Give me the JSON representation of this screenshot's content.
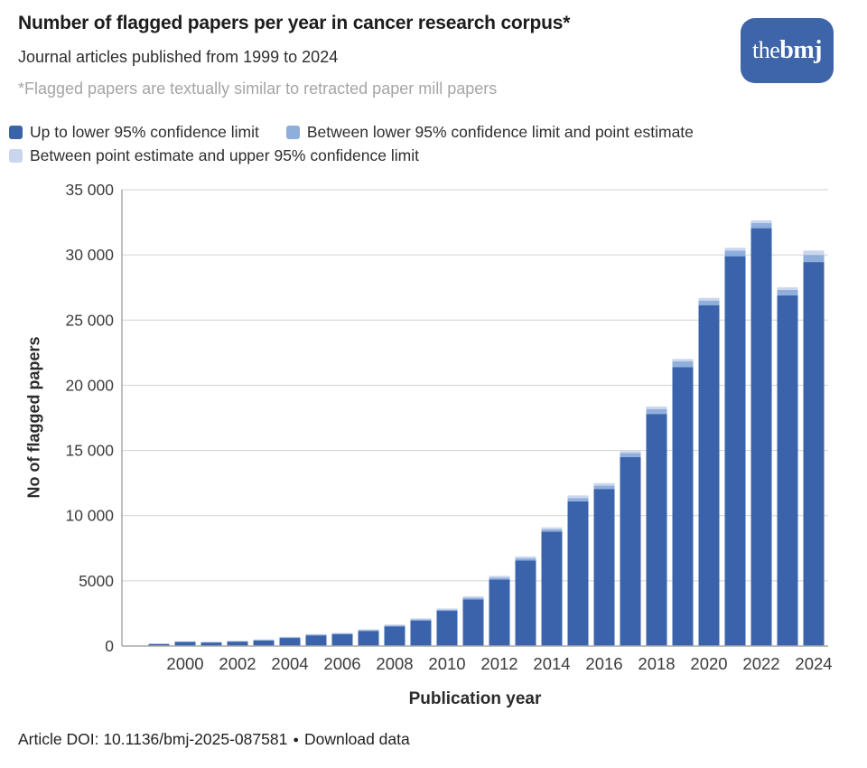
{
  "header": {
    "title": "Number of flagged papers per year in cancer research corpus*",
    "subtitle": "Journal articles published from 1999 to 2024",
    "footnote": "*Flagged papers are textually similar to retracted paper mill papers"
  },
  "logo": {
    "prefix": "the",
    "suffix": "bmj",
    "bg_color": "#3e64a9",
    "text_color": "#ffffff"
  },
  "legend": {
    "items": [
      {
        "label": "Up to lower 95% confidence limit",
        "color": "#3a63ac"
      },
      {
        "label": "Between lower 95% confidence limit and point estimate",
        "color": "#8faedc"
      },
      {
        "label": "Between point estimate and upper 95% confidence limit",
        "color": "#c9d6ed"
      }
    ]
  },
  "chart_data": {
    "type": "bar",
    "stacked": true,
    "title": "Number of flagged papers per year in cancer research corpus*",
    "xlabel": "Publication year",
    "ylabel": "No of flagged papers",
    "ylim": [
      0,
      35000
    ],
    "grid": "horizontal",
    "legend_position": "top",
    "ytick_values": [
      0,
      5000,
      10000,
      15000,
      20000,
      25000,
      30000,
      35000
    ],
    "ytick_labels": [
      "0",
      "5000",
      "10 000",
      "15 000",
      "20 000",
      "25 000",
      "30 000",
      "35 000"
    ],
    "xtick_years": [
      "2000",
      "2002",
      "2004",
      "2006",
      "2008",
      "2010",
      "2012",
      "2014",
      "2016",
      "2018",
      "2020",
      "2022",
      "2024"
    ],
    "segment_colors": {
      "lower": "#3a63ac",
      "mid": "#8faedc",
      "upper": "#c9d6ed"
    },
    "bars": [
      {
        "year": 1999,
        "lower": 150,
        "point": 180,
        "upper": 200
      },
      {
        "year": 2000,
        "lower": 310,
        "point": 340,
        "upper": 370
      },
      {
        "year": 2001,
        "lower": 270,
        "point": 300,
        "upper": 330
      },
      {
        "year": 2002,
        "lower": 340,
        "point": 370,
        "upper": 400
      },
      {
        "year": 2003,
        "lower": 430,
        "point": 470,
        "upper": 510
      },
      {
        "year": 2004,
        "lower": 620,
        "point": 670,
        "upper": 710
      },
      {
        "year": 2005,
        "lower": 820,
        "point": 870,
        "upper": 920
      },
      {
        "year": 2006,
        "lower": 900,
        "point": 960,
        "upper": 1010
      },
      {
        "year": 2007,
        "lower": 1160,
        "point": 1220,
        "upper": 1280
      },
      {
        "year": 2008,
        "lower": 1510,
        "point": 1580,
        "upper": 1650
      },
      {
        "year": 2009,
        "lower": 1960,
        "point": 2040,
        "upper": 2120
      },
      {
        "year": 2010,
        "lower": 2700,
        "point": 2790,
        "upper": 2880
      },
      {
        "year": 2011,
        "lower": 3580,
        "point": 3700,
        "upper": 3810
      },
      {
        "year": 2012,
        "lower": 5100,
        "point": 5250,
        "upper": 5380
      },
      {
        "year": 2013,
        "lower": 6550,
        "point": 6720,
        "upper": 6870
      },
      {
        "year": 2014,
        "lower": 8780,
        "point": 8950,
        "upper": 9100
      },
      {
        "year": 2015,
        "lower": 11100,
        "point": 11350,
        "upper": 11550
      },
      {
        "year": 2016,
        "lower": 12050,
        "point": 12300,
        "upper": 12500
      },
      {
        "year": 2017,
        "lower": 14500,
        "point": 14800,
        "upper": 14950
      },
      {
        "year": 2018,
        "lower": 17800,
        "point": 18180,
        "upper": 18370
      },
      {
        "year": 2019,
        "lower": 21400,
        "point": 21840,
        "upper": 22020
      },
      {
        "year": 2020,
        "lower": 26150,
        "point": 26500,
        "upper": 26700
      },
      {
        "year": 2021,
        "lower": 29900,
        "point": 30330,
        "upper": 30550
      },
      {
        "year": 2022,
        "lower": 32050,
        "point": 32450,
        "upper": 32650
      },
      {
        "year": 2023,
        "lower": 26900,
        "point": 27320,
        "upper": 27520
      },
      {
        "year": 2024,
        "lower": 29450,
        "point": 30000,
        "upper": 30330
      }
    ]
  },
  "footer": {
    "doi": "Article DOI: 10.1136/bmj-2025-087581",
    "separator": "●",
    "download_label": "Download data"
  }
}
